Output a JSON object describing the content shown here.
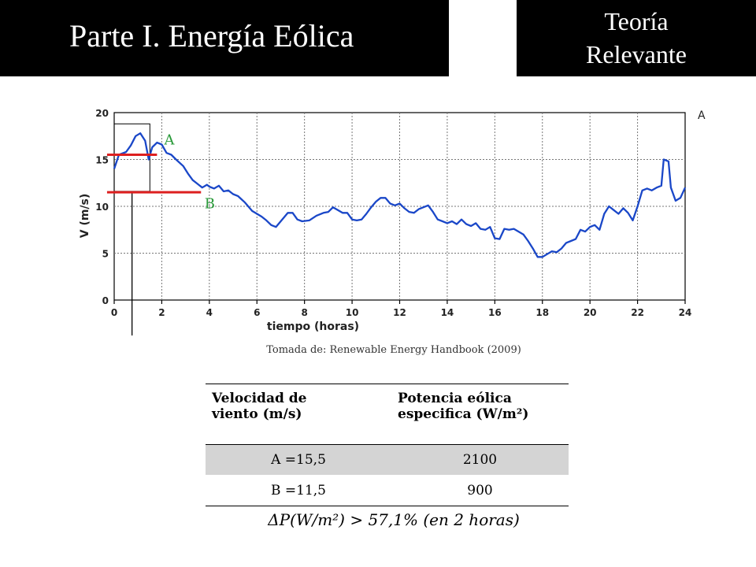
{
  "header": {
    "title": "Parte I. Energía Eólica",
    "tag_line1": "Teoría",
    "tag_line2": "Relevante"
  },
  "chart_data": {
    "type": "line",
    "panel_label": "A",
    "xlabel": "tiempo (horas)",
    "ylabel": "V (m/s)",
    "xlim": [
      0,
      24
    ],
    "ylim": [
      0,
      20
    ],
    "x_ticks": [
      "0",
      "2",
      "4",
      "6",
      "8",
      "10",
      "12",
      "14",
      "16",
      "18",
      "20",
      "22",
      "24"
    ],
    "y_ticks": [
      "0",
      "5",
      "10",
      "15",
      "20"
    ],
    "grid": true,
    "series": [
      {
        "color": "#1a47c8",
        "points": [
          [
            0,
            14
          ],
          [
            0.2,
            15.5
          ],
          [
            0.5,
            15.8
          ],
          [
            0.7,
            16.5
          ],
          [
            0.9,
            17.5
          ],
          [
            1.1,
            17.8
          ],
          [
            1.3,
            17
          ],
          [
            1.45,
            15
          ],
          [
            1.6,
            16.3
          ],
          [
            1.8,
            16.8
          ],
          [
            2.0,
            16.6
          ],
          [
            2.2,
            15.7
          ],
          [
            2.4,
            15.5
          ],
          [
            2.6,
            15
          ],
          [
            2.9,
            14.3
          ],
          [
            3.1,
            13.5
          ],
          [
            3.3,
            12.8
          ],
          [
            3.5,
            12.4
          ],
          [
            3.7,
            12
          ],
          [
            3.9,
            12.3
          ],
          [
            4.0,
            12.1
          ],
          [
            4.2,
            11.9
          ],
          [
            4.4,
            12.2
          ],
          [
            4.6,
            11.6
          ],
          [
            4.8,
            11.7
          ],
          [
            5.0,
            11.3
          ],
          [
            5.2,
            11.1
          ],
          [
            5.5,
            10.4
          ],
          [
            5.8,
            9.5
          ],
          [
            6.0,
            9.2
          ],
          [
            6.2,
            8.9
          ],
          [
            6.4,
            8.5
          ],
          [
            6.6,
            8.0
          ],
          [
            6.8,
            7.8
          ],
          [
            7.0,
            8.4
          ],
          [
            7.3,
            9.3
          ],
          [
            7.5,
            9.3
          ],
          [
            7.7,
            8.6
          ],
          [
            7.9,
            8.4
          ],
          [
            8.2,
            8.5
          ],
          [
            8.5,
            9.0
          ],
          [
            8.8,
            9.3
          ],
          [
            9.0,
            9.4
          ],
          [
            9.2,
            9.9
          ],
          [
            9.4,
            9.6
          ],
          [
            9.6,
            9.3
          ],
          [
            9.8,
            9.3
          ],
          [
            10.0,
            8.6
          ],
          [
            10.2,
            8.5
          ],
          [
            10.4,
            8.6
          ],
          [
            10.6,
            9.2
          ],
          [
            10.8,
            9.9
          ],
          [
            11.0,
            10.5
          ],
          [
            11.2,
            10.9
          ],
          [
            11.4,
            10.9
          ],
          [
            11.6,
            10.3
          ],
          [
            11.8,
            10.1
          ],
          [
            12.0,
            10.3
          ],
          [
            12.2,
            9.8
          ],
          [
            12.4,
            9.4
          ],
          [
            12.6,
            9.3
          ],
          [
            12.8,
            9.7
          ],
          [
            13.0,
            9.9
          ],
          [
            13.2,
            10.1
          ],
          [
            13.4,
            9.4
          ],
          [
            13.6,
            8.6
          ],
          [
            13.8,
            8.4
          ],
          [
            14.0,
            8.2
          ],
          [
            14.2,
            8.4
          ],
          [
            14.4,
            8.1
          ],
          [
            14.6,
            8.6
          ],
          [
            14.8,
            8.1
          ],
          [
            15.0,
            7.9
          ],
          [
            15.2,
            8.2
          ],
          [
            15.4,
            7.6
          ],
          [
            15.6,
            7.5
          ],
          [
            15.8,
            7.8
          ],
          [
            16.0,
            6.6
          ],
          [
            16.2,
            6.5
          ],
          [
            16.4,
            7.6
          ],
          [
            16.6,
            7.5
          ],
          [
            16.8,
            7.6
          ],
          [
            17.0,
            7.3
          ],
          [
            17.2,
            7.0
          ],
          [
            17.4,
            6.3
          ],
          [
            17.6,
            5.5
          ],
          [
            17.8,
            4.6
          ],
          [
            18.0,
            4.6
          ],
          [
            18.2,
            4.9
          ],
          [
            18.4,
            5.2
          ],
          [
            18.6,
            5.1
          ],
          [
            18.8,
            5.5
          ],
          [
            19.0,
            6.1
          ],
          [
            19.2,
            6.3
          ],
          [
            19.4,
            6.5
          ],
          [
            19.6,
            7.5
          ],
          [
            19.8,
            7.3
          ],
          [
            20.0,
            7.8
          ],
          [
            20.2,
            8.0
          ],
          [
            20.4,
            7.5
          ],
          [
            20.6,
            9.2
          ],
          [
            20.8,
            10.0
          ],
          [
            21.0,
            9.6
          ],
          [
            21.2,
            9.2
          ],
          [
            21.4,
            9.8
          ],
          [
            21.6,
            9.3
          ],
          [
            21.8,
            8.5
          ],
          [
            22.0,
            10.0
          ],
          [
            22.2,
            11.7
          ],
          [
            22.4,
            11.9
          ],
          [
            22.6,
            11.7
          ],
          [
            22.8,
            12.0
          ],
          [
            23.0,
            12.2
          ],
          [
            23.1,
            15.0
          ],
          [
            23.3,
            14.8
          ],
          [
            23.4,
            12.0
          ],
          [
            23.6,
            10.6
          ],
          [
            23.8,
            10.9
          ],
          [
            24.0,
            12.0
          ]
        ]
      }
    ],
    "markers": [
      {
        "label": "A",
        "value": 15.5,
        "label_color": "#2a9a3a"
      },
      {
        "label": "B",
        "value": 11.5,
        "label_color": "#2a9a3a"
      }
    ]
  },
  "caption": "Tomada de: Renewable Energy Handbook (2009)",
  "table": {
    "col1_header_line1": "Velocidad de",
    "col1_header_line2": "viento (m/s)",
    "col2_header_line1": "Potencia eólica",
    "col2_header_line2": "especifica (W/m²)",
    "rows": [
      {
        "speed": "A =15,5",
        "power": "2100"
      },
      {
        "speed": "B =11,5",
        "power": "900"
      }
    ]
  },
  "formula": "ΔP(W/m²) > 57,1% (en 2 horas)"
}
